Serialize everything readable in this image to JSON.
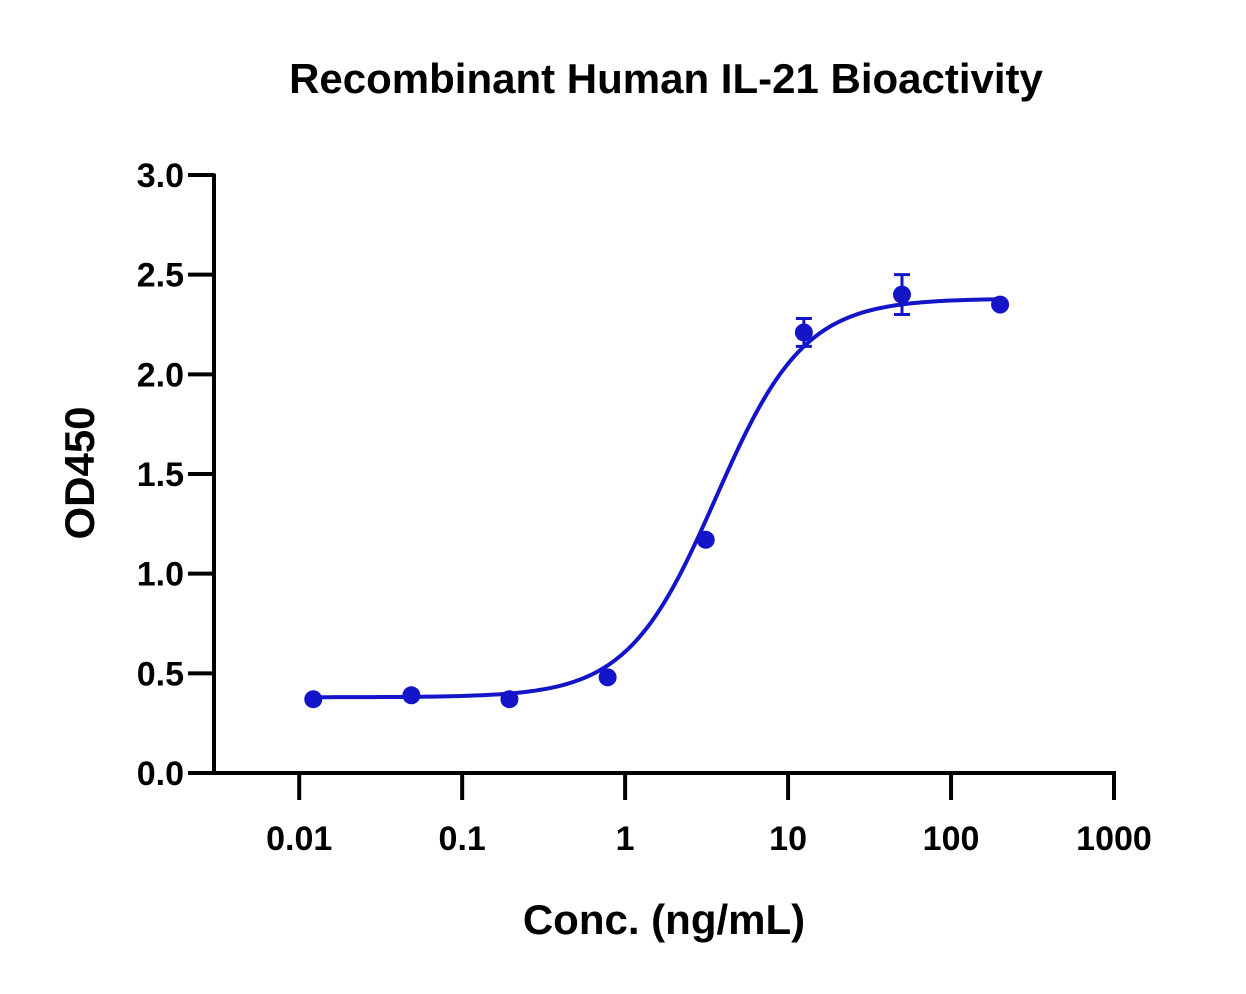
{
  "chart_data": {
    "type": "scatter",
    "title": "Recombinant Human IL-21 Bioactivity",
    "xlabel": "Conc. (ng/mL)",
    "ylabel": "OD450",
    "x_scale": "log",
    "xlim": [
      0.003,
      1000
    ],
    "ylim": [
      0,
      3.0
    ],
    "x_ticks": [
      {
        "value": 0.01,
        "label": "0.01"
      },
      {
        "value": 0.1,
        "label": "0.1"
      },
      {
        "value": 1,
        "label": "1"
      },
      {
        "value": 10,
        "label": "10"
      },
      {
        "value": 100,
        "label": "100"
      },
      {
        "value": 1000,
        "label": "1000"
      }
    ],
    "y_ticks": [
      {
        "value": 0.0,
        "label": "0.0"
      },
      {
        "value": 0.5,
        "label": "0.5"
      },
      {
        "value": 1.0,
        "label": "1.0"
      },
      {
        "value": 1.5,
        "label": "1.5"
      },
      {
        "value": 2.0,
        "label": "2.0"
      },
      {
        "value": 2.5,
        "label": "2.5"
      },
      {
        "value": 3.0,
        "label": "3.0"
      }
    ],
    "grid": false,
    "color": "#1414c8",
    "series": [
      {
        "points": [
          {
            "x": 0.0122,
            "y": 0.37,
            "err": 0
          },
          {
            "x": 0.0488,
            "y": 0.39,
            "err": 0
          },
          {
            "x": 0.195,
            "y": 0.37,
            "err": 0
          },
          {
            "x": 0.781,
            "y": 0.48,
            "err": 0
          },
          {
            "x": 3.125,
            "y": 1.17,
            "err": 0
          },
          {
            "x": 12.5,
            "y": 2.21,
            "err": 0.07
          },
          {
            "x": 50,
            "y": 2.4,
            "err": 0.1
          },
          {
            "x": 200,
            "y": 2.35,
            "err": 0
          }
        ],
        "fit": {
          "model": "4PL",
          "bottom": 0.38,
          "top": 2.38,
          "ec50": 3.6,
          "hill": 1.6,
          "x_range": [
            0.0122,
            200
          ]
        }
      }
    ]
  }
}
